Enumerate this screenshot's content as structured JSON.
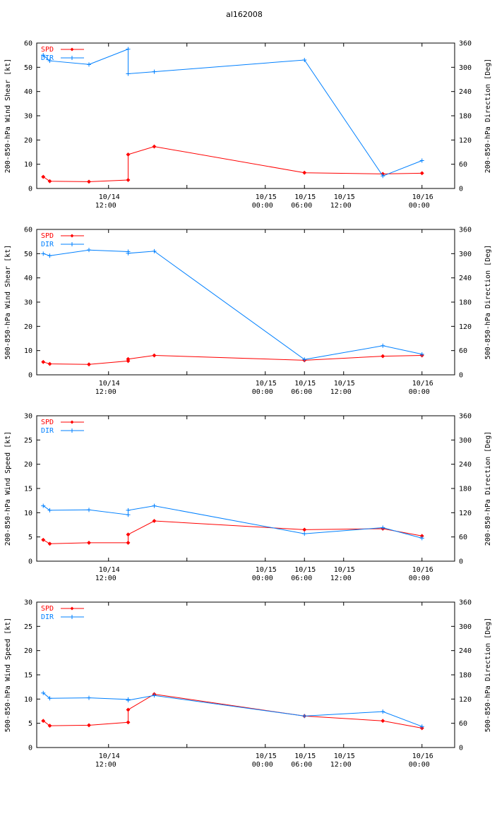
{
  "page_title": "al162008",
  "colors": {
    "spd": "#ff0000",
    "dir": "#0080ff",
    "title": "#0000ff"
  },
  "legend": {
    "spd_label": "SPD",
    "dir_label": "DIR"
  },
  "chart_data": [
    {
      "type": "line",
      "ylabel_left": "200-850-hPa Wind Shear [kt]",
      "ylabel_right": "200-850-hPa Direction [Deg]",
      "ylim_left": [
        0,
        60
      ],
      "yticks_left": [
        0,
        10,
        20,
        30,
        40,
        50,
        60
      ],
      "ylim_right": [
        0,
        360
      ],
      "yticks_right": [
        0,
        60,
        120,
        180,
        240,
        300,
        360
      ],
      "xlim_hours": [
        -11,
        53
      ],
      "xticks": [
        {
          "h": 0,
          "line1": "10/14",
          "line2": "12:00"
        },
        {
          "h": 12,
          "line1": "",
          "line2": ""
        },
        {
          "h": 24,
          "line1": "10/15",
          "line2": "00:00"
        },
        {
          "h": 30,
          "line1": "10/15",
          "line2": "06:00"
        },
        {
          "h": 36,
          "line1": "10/15",
          "line2": "12:00"
        },
        {
          "h": 48,
          "line1": "10/16",
          "line2": "00:00"
        }
      ],
      "series": [
        {
          "name": "SPD",
          "axis": "left",
          "x": [
            -10,
            -9,
            -3,
            3,
            3,
            7,
            30,
            42,
            48
          ],
          "values": [
            4.8,
            3,
            2.8,
            3.5,
            14,
            17.3,
            6.5,
            6,
            6.3
          ]
        },
        {
          "name": "DIR",
          "axis": "right",
          "x": [
            -10,
            -9,
            -3,
            3,
            3,
            7,
            30,
            42,
            48
          ],
          "values": [
            330,
            316,
            307,
            345,
            284,
            289,
            318,
            31,
            69
          ]
        }
      ]
    },
    {
      "type": "line",
      "ylabel_left": "500-850-hPa Wind Shear [kt]",
      "ylabel_right": "500-850-hPa Direction [Deg]",
      "ylim_left": [
        0,
        60
      ],
      "yticks_left": [
        0,
        10,
        20,
        30,
        40,
        50,
        60
      ],
      "ylim_right": [
        0,
        360
      ],
      "yticks_right": [
        0,
        60,
        120,
        180,
        240,
        300,
        360
      ],
      "xlim_hours": [
        -11,
        53
      ],
      "xticks": [
        {
          "h": 0,
          "line1": "10/14",
          "line2": "12:00"
        },
        {
          "h": 12,
          "line1": "",
          "line2": ""
        },
        {
          "h": 24,
          "line1": "10/15",
          "line2": "00:00"
        },
        {
          "h": 30,
          "line1": "10/15",
          "line2": "06:00"
        },
        {
          "h": 36,
          "line1": "10/15",
          "line2": "12:00"
        },
        {
          "h": 48,
          "line1": "10/16",
          "line2": "00:00"
        }
      ],
      "series": [
        {
          "name": "SPD",
          "axis": "left",
          "x": [
            -10,
            -9,
            -3,
            3,
            3,
            7,
            30,
            42,
            48
          ],
          "values": [
            5.3,
            4.5,
            4.3,
            5.7,
            6.5,
            8,
            6,
            7.7,
            8
          ]
        },
        {
          "name": "DIR",
          "axis": "right",
          "x": [
            -10,
            -9,
            -3,
            3,
            3,
            7,
            30,
            42,
            48
          ],
          "values": [
            300,
            295,
            309,
            305,
            301,
            306,
            38,
            72,
            51
          ]
        }
      ]
    },
    {
      "type": "line",
      "ylabel_left": "200-850-hPa Wind Speed [kt]",
      "ylabel_right": "200-850-hPa Direction [Deg]",
      "ylim_left": [
        0,
        30
      ],
      "yticks_left": [
        0,
        5,
        10,
        15,
        20,
        25,
        30
      ],
      "ylim_right": [
        0,
        360
      ],
      "yticks_right": [
        0,
        60,
        120,
        180,
        240,
        300,
        360
      ],
      "xlim_hours": [
        -11,
        53
      ],
      "xticks": [
        {
          "h": 0,
          "line1": "10/14",
          "line2": "12:00"
        },
        {
          "h": 12,
          "line1": "",
          "line2": ""
        },
        {
          "h": 24,
          "line1": "10/15",
          "line2": "00:00"
        },
        {
          "h": 30,
          "line1": "10/15",
          "line2": "06:00"
        },
        {
          "h": 36,
          "line1": "10/15",
          "line2": "12:00"
        },
        {
          "h": 48,
          "line1": "10/16",
          "line2": "00:00"
        }
      ],
      "series": [
        {
          "name": "SPD",
          "axis": "left",
          "x": [
            -10,
            -9,
            -3,
            3,
            3,
            7,
            30,
            42,
            48
          ],
          "values": [
            4.4,
            3.6,
            3.8,
            3.8,
            5.5,
            8.3,
            6.5,
            6.7,
            5.2
          ]
        },
        {
          "name": "DIR",
          "axis": "right",
          "x": [
            -10,
            -9,
            -3,
            3,
            3,
            7,
            30,
            42,
            48
          ],
          "values": [
            137,
            126,
            127,
            115,
            126,
            137,
            68,
            83,
            57
          ]
        }
      ]
    },
    {
      "type": "line",
      "ylabel_left": "500-850-hPa Wind Speed [kt]",
      "ylabel_right": "500-850-hPa Direction [Deg]",
      "ylim_left": [
        0,
        30
      ],
      "yticks_left": [
        0,
        5,
        10,
        15,
        20,
        25,
        30
      ],
      "ylim_right": [
        0,
        360
      ],
      "yticks_right": [
        0,
        60,
        120,
        180,
        240,
        300,
        360
      ],
      "xlim_hours": [
        -11,
        53
      ],
      "xticks": [
        {
          "h": 0,
          "line1": "10/14",
          "line2": "12:00"
        },
        {
          "h": 12,
          "line1": "",
          "line2": ""
        },
        {
          "h": 24,
          "line1": "10/15",
          "line2": "00:00"
        },
        {
          "h": 30,
          "line1": "10/15",
          "line2": "06:00"
        },
        {
          "h": 36,
          "line1": "10/15",
          "line2": "12:00"
        },
        {
          "h": 48,
          "line1": "10/16",
          "line2": "00:00"
        }
      ],
      "series": [
        {
          "name": "SPD",
          "axis": "left",
          "x": [
            -10,
            -9,
            -3,
            3,
            3,
            7,
            30,
            42,
            48
          ],
          "values": [
            5.5,
            4.5,
            4.6,
            5.2,
            7.8,
            11,
            6.5,
            5.5,
            4
          ]
        },
        {
          "name": "DIR",
          "axis": "right",
          "x": [
            -10,
            -9,
            -3,
            3,
            3,
            7,
            30,
            42,
            48
          ],
          "values": [
            135,
            122,
            123,
            119,
            117,
            129,
            78,
            89,
            52
          ]
        }
      ]
    }
  ]
}
